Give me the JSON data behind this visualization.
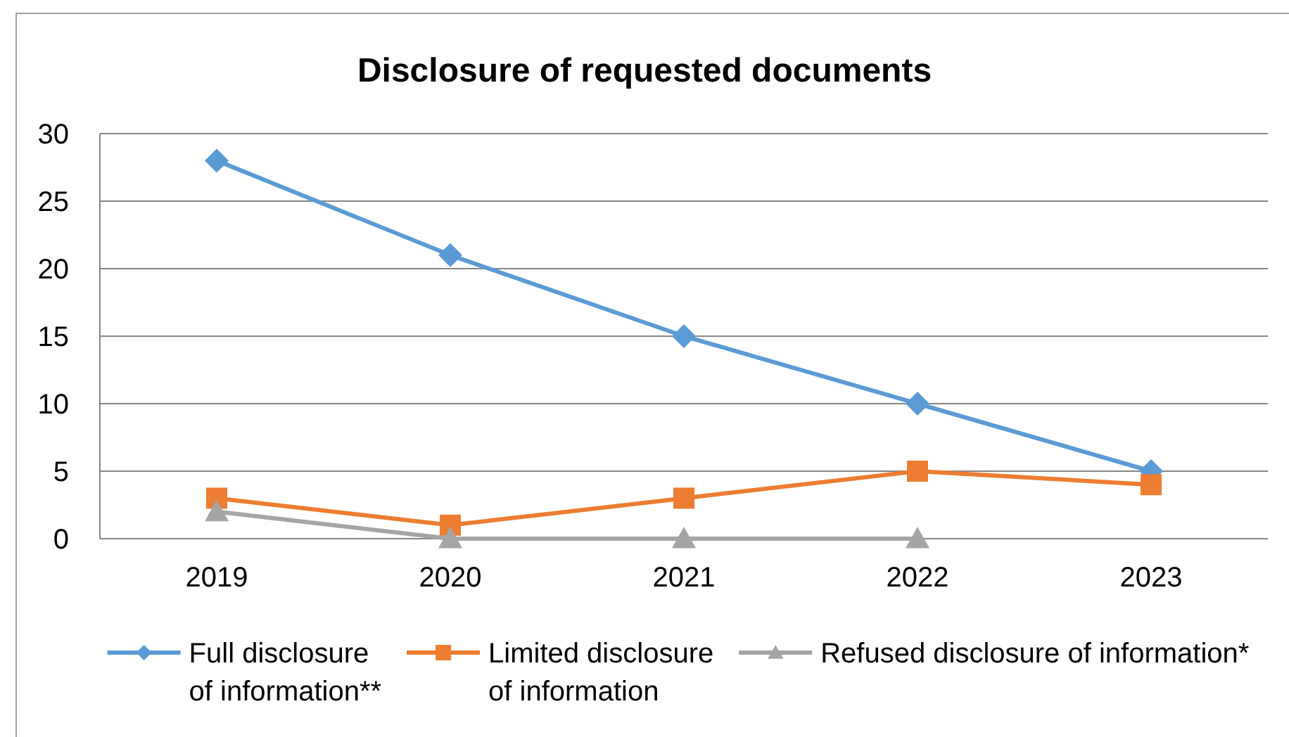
{
  "chart_data": {
    "type": "line",
    "title": "Disclosure of requested documents",
    "categories": [
      "2019",
      "2020",
      "2021",
      "2022",
      "2023"
    ],
    "series": [
      {
        "name": "Full disclosure of information**",
        "color": "#5b9bd5",
        "marker": "diamond",
        "values": [
          28,
          21,
          15,
          10,
          5
        ]
      },
      {
        "name": "Limited disclosure of information",
        "color": "#ed7d31",
        "marker": "square",
        "values": [
          3,
          1,
          3,
          5,
          4
        ]
      },
      {
        "name": "Refused disclosure of information*",
        "color": "#a5a5a5",
        "marker": "triangle",
        "values": [
          2,
          0,
          0,
          0,
          null
        ]
      }
    ],
    "ylim": [
      0,
      30
    ],
    "yticks": [
      0,
      5,
      10,
      15,
      20,
      25,
      30
    ],
    "grid": "y",
    "legend": "bottom"
  }
}
